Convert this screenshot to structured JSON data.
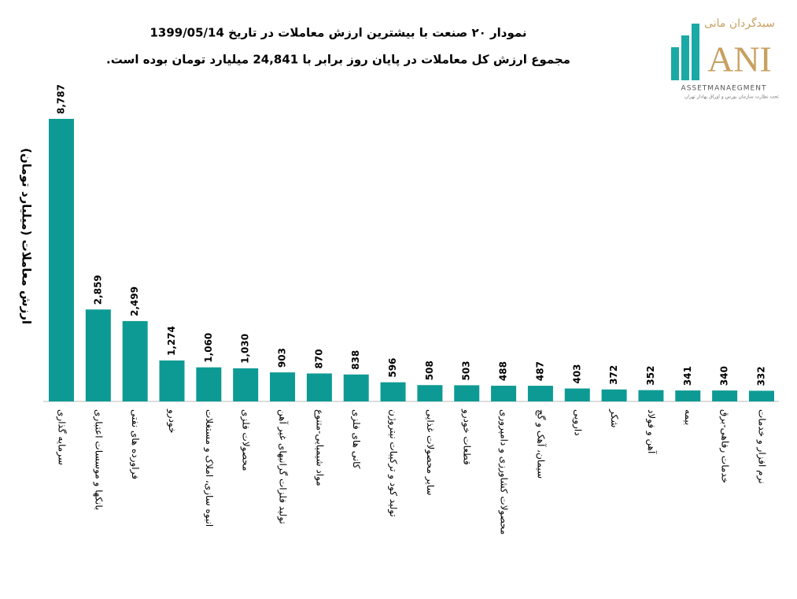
{
  "chart_data": {
    "type": "bar",
    "title": "نمودار ۲۰ صنعت با بیشترین ارزش معاملات در تاریخ 1399/05/14",
    "subtitle": "مجموع ارزش کل معاملات در پایان روز برابر با 24,841 میلیارد تومان بوده است.",
    "y_label": "ارزش معاملات (میلیارد تومان)",
    "color": "#0e9a94",
    "categories": [
      "سرمایه گذاری",
      "بانکها و موسسات اعتباری",
      "فراورده های نفتی",
      "خودرو",
      "انبوه سازی، املاک و مستغلات",
      "محصولات فلزی",
      "تولید فلزات گرانبهای غیر آهن",
      "مواد شیمیایی-متنوع",
      "کانی های فلزی",
      "تولید کود و ترکیبات نیتروژن",
      "سایر محصولات غذایی",
      "قطعات خودرو",
      "محصولات کشاورزی و دامپروری",
      "سیمان، آهک و گچ",
      "دارویی",
      "شکر",
      "آهن و فولاد",
      "بیمه",
      "خدمات رفاهی-برق",
      "نرم افزار و خدمات"
    ],
    "values": [
      8787,
      2859,
      2499,
      1274,
      1060,
      1030,
      903,
      870,
      838,
      596,
      508,
      503,
      488,
      487,
      403,
      372,
      352,
      341,
      340,
      332
    ],
    "value_labels": [
      "8,787",
      "2,859",
      "2,499",
      "1,274",
      "1,060",
      "1,030",
      "903",
      "870",
      "838",
      "596",
      "508",
      "503",
      "488",
      "487",
      "403",
      "372",
      "352",
      "341",
      "340",
      "332"
    ]
  },
  "logo": {
    "name": "سبدگردان مانی",
    "mark": "ANI",
    "sub": "ASSETMANAEGMENT",
    "note": "تحت نظارت سازمان بورس و اوراق بهادار تهران"
  }
}
